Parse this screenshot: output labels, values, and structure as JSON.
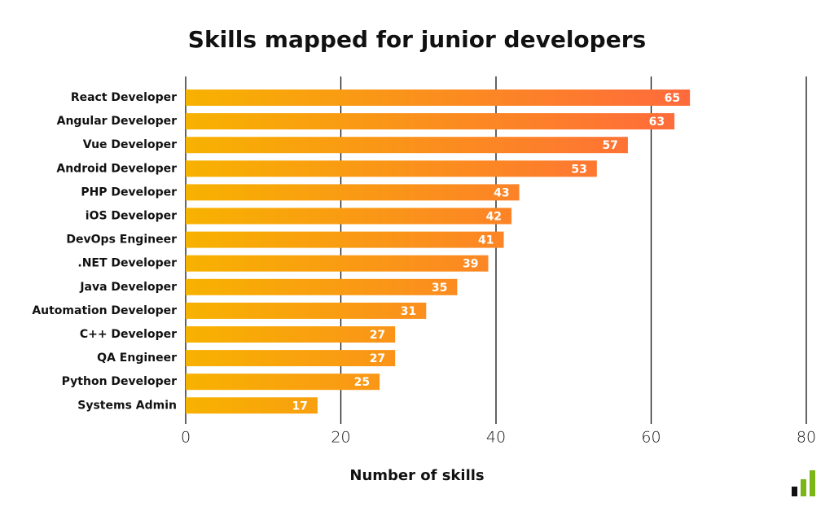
{
  "chart_data": {
    "type": "bar",
    "orientation": "horizontal",
    "title": "Skills mapped for junior developers",
    "x_label": "Number of skills",
    "categories": [
      "React Developer",
      "Angular Developer",
      "Vue Developer",
      "Android Developer",
      "PHP Developer",
      "iOS Developer",
      "DevOps Engineer",
      ".NET Developer",
      "Java Developer",
      "Automation Developer",
      "C++ Developer",
      "QA Engineer",
      "Python Developer",
      "Systems Admin"
    ],
    "values": [
      65,
      63,
      57,
      53,
      43,
      42,
      41,
      39,
      35,
      31,
      27,
      27,
      25,
      17
    ],
    "colors": [
      "#f7b200",
      "#ff6a3c"
    ],
    "xlim": [
      0,
      80
    ],
    "xticks": [
      0,
      20,
      40,
      60,
      80
    ],
    "grid": true
  }
}
